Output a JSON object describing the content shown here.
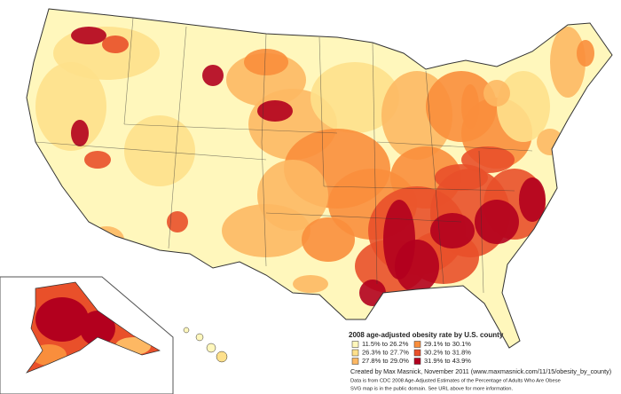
{
  "legend": {
    "title": "2008 age-adjusted obesity rate by U.S. county",
    "items": [
      {
        "label": "11.5% to 26.2%",
        "color": "#fff7bc"
      },
      {
        "label": "26.3% to 27.7%",
        "color": "#fee08b"
      },
      {
        "label": "27.8% to 29.0%",
        "color": "#fdb863"
      },
      {
        "label": "29.1% to 30.1%",
        "color": "#f98e3c"
      },
      {
        "label": "30.2% to 31.8%",
        "color": "#e9502a"
      },
      {
        "label": "31.9% to 43.9%",
        "color": "#b3001e"
      }
    ]
  },
  "credits": [
    "Created by Max Masnick, November 2011 (www.maxmasnick.com/11/15/obesity_by_county)",
    "Data is from CDC 2008 Age-Adjusted Estimates of the Percentage of Adults Who Are Obese",
    "SVG map is in the public domain. See URL above for more information."
  ]
}
